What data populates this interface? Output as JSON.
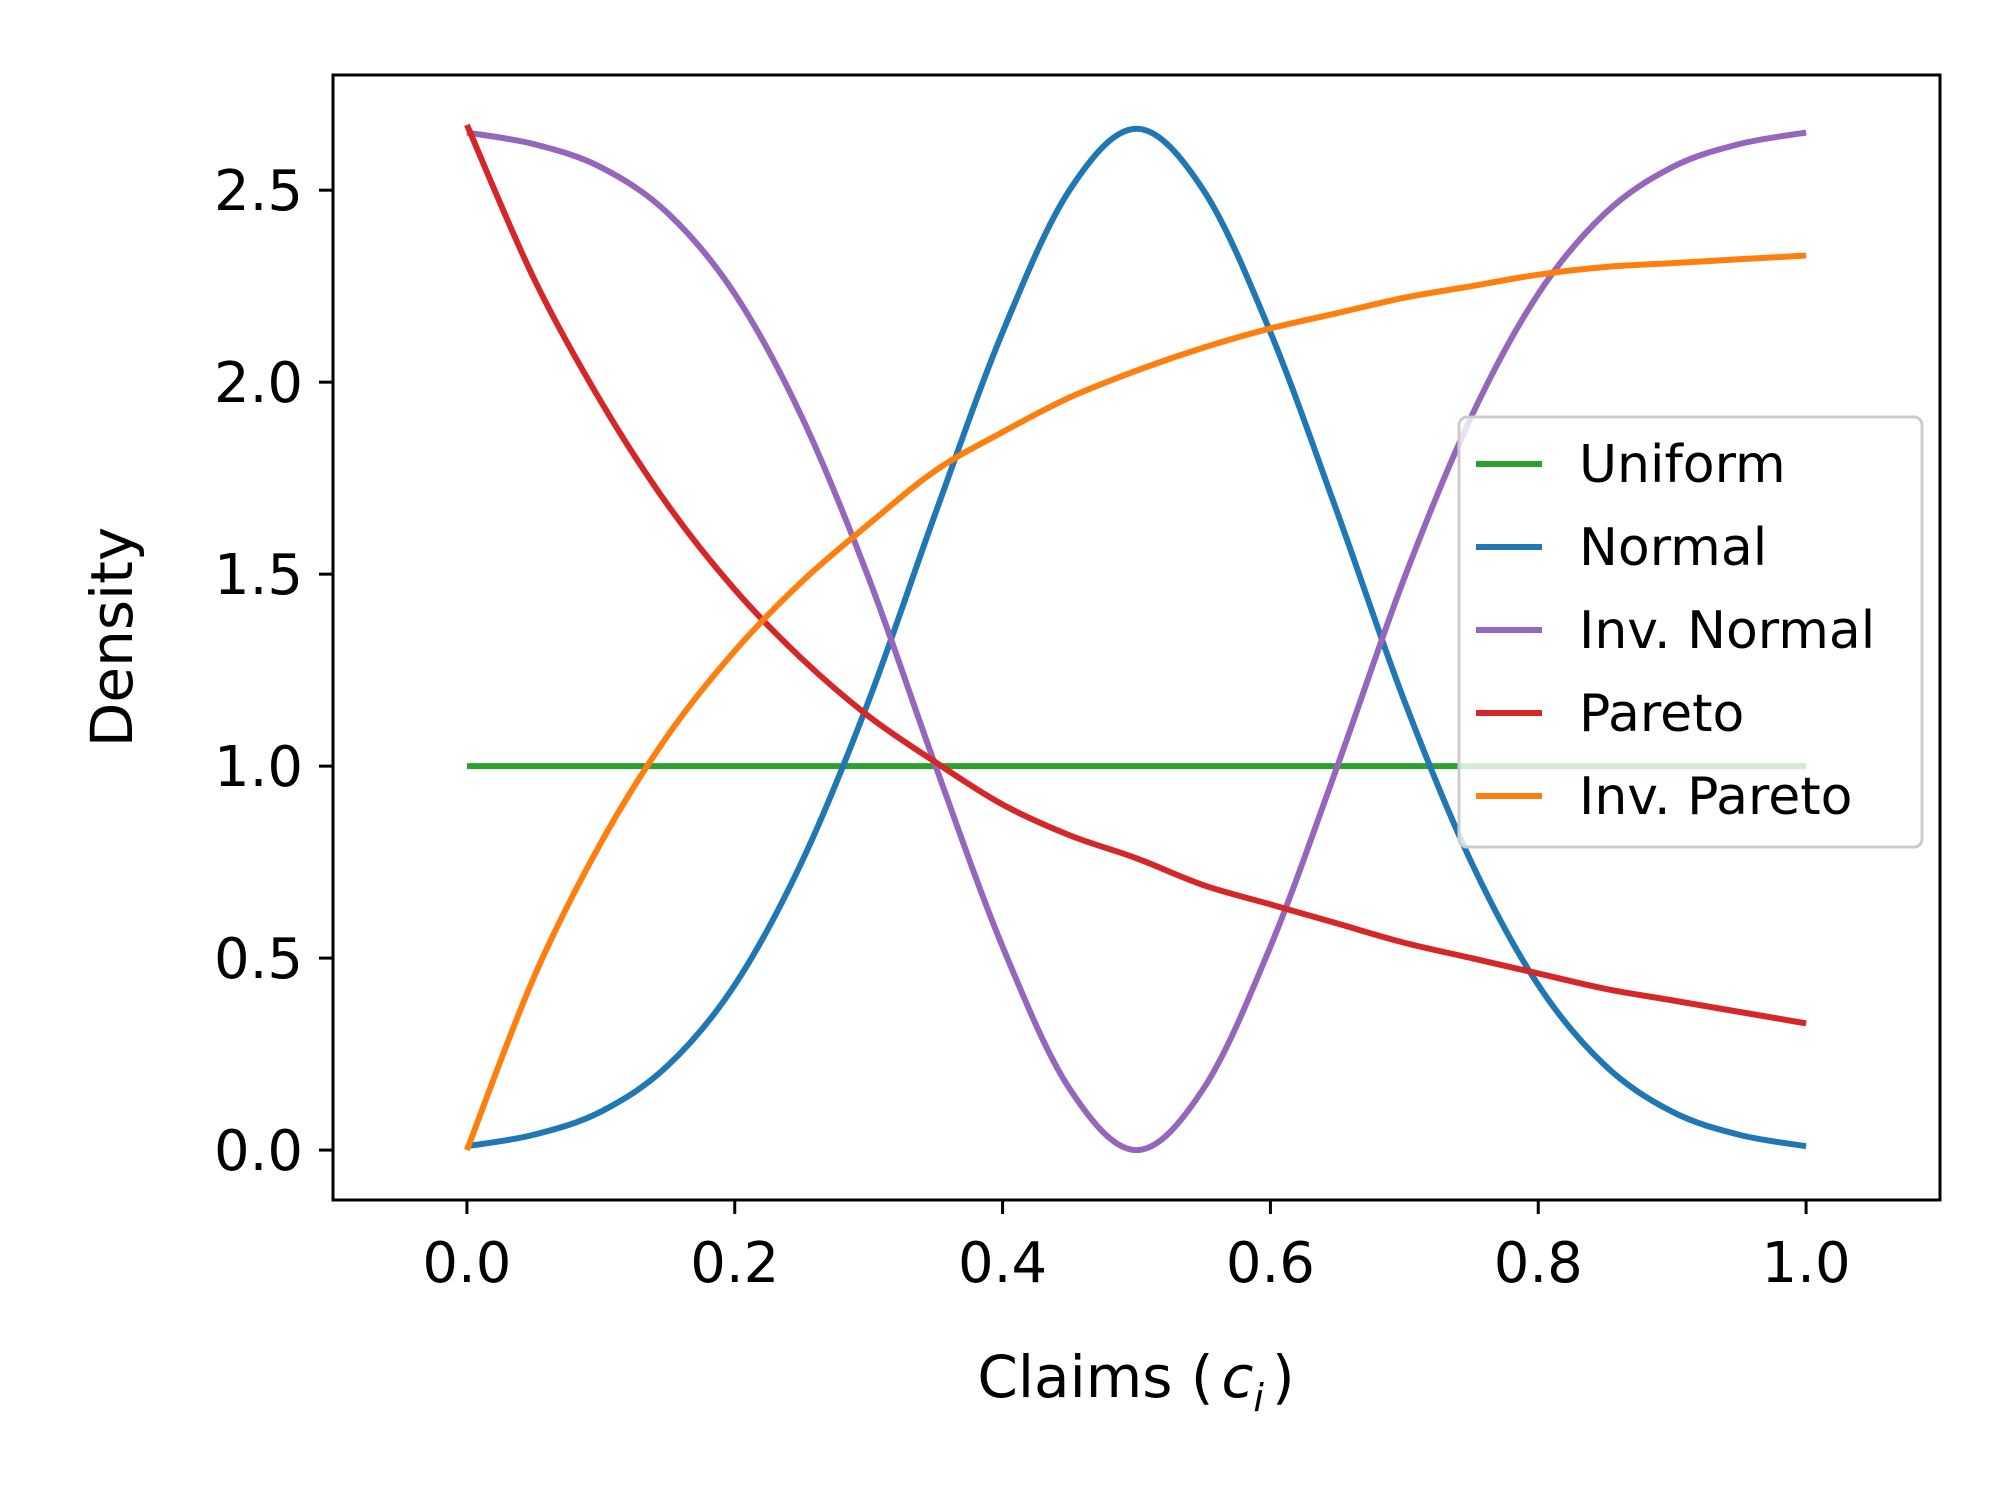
{
  "chart_data": {
    "type": "line",
    "title": "",
    "xlabel": "Claims (",
    "xlabel_symbol": "c",
    "xlabel_subscript": "i",
    "xlabel_close": ")",
    "ylabel": "Density",
    "xlim": [
      -0.1,
      1.1
    ],
    "ylim": [
      -0.13,
      2.8
    ],
    "xticks": [
      0.0,
      0.2,
      0.4,
      0.6,
      0.8,
      1.0
    ],
    "xtick_labels": [
      "0.0",
      "0.2",
      "0.4",
      "0.6",
      "0.8",
      "1.0"
    ],
    "yticks": [
      0.0,
      0.5,
      1.0,
      1.5,
      2.0,
      2.5
    ],
    "ytick_labels": [
      "0.0",
      "0.5",
      "1.0",
      "1.5",
      "2.0",
      "2.5"
    ],
    "grid": false,
    "legend_position": "right",
    "x": [
      0.0,
      0.05,
      0.1,
      0.15,
      0.2,
      0.25,
      0.3,
      0.35,
      0.4,
      0.45,
      0.5,
      0.55,
      0.6,
      0.65,
      0.7,
      0.75,
      0.8,
      0.85,
      0.9,
      0.95,
      1.0
    ],
    "series": [
      {
        "name": "Uniform",
        "color": "#2ca02c",
        "values": [
          1.0,
          1.0,
          1.0,
          1.0,
          1.0,
          1.0,
          1.0,
          1.0,
          1.0,
          1.0,
          1.0,
          1.0,
          1.0,
          1.0,
          1.0,
          1.0,
          1.0,
          1.0,
          1.0,
          1.0,
          1.0
        ]
      },
      {
        "name": "Normal",
        "color": "#1f77b4",
        "values": [
          0.01,
          0.04,
          0.1,
          0.22,
          0.43,
          0.75,
          1.17,
          1.66,
          2.13,
          2.5,
          2.66,
          2.5,
          2.13,
          1.66,
          1.17,
          0.75,
          0.43,
          0.22,
          0.1,
          0.04,
          0.01
        ]
      },
      {
        "name": "Inv. Normal",
        "color": "#9467bd",
        "values": [
          2.65,
          2.62,
          2.56,
          2.44,
          2.23,
          1.91,
          1.49,
          1.0,
          0.53,
          0.16,
          0.0,
          0.16,
          0.53,
          1.0,
          1.49,
          1.91,
          2.23,
          2.44,
          2.56,
          2.62,
          2.65
        ]
      },
      {
        "name": "Pareto",
        "color": "#d62728",
        "values": [
          2.67,
          2.27,
          1.95,
          1.68,
          1.46,
          1.28,
          1.13,
          1.01,
          0.9,
          0.82,
          0.76,
          0.69,
          0.64,
          0.59,
          0.54,
          0.5,
          0.46,
          0.42,
          0.39,
          0.36,
          0.33
        ]
      },
      {
        "name": "Inv. Pareto",
        "color": "#ff7f0e",
        "values": [
          0.0,
          0.45,
          0.8,
          1.08,
          1.3,
          1.48,
          1.63,
          1.77,
          1.87,
          1.96,
          2.03,
          2.09,
          2.14,
          2.18,
          2.22,
          2.25,
          2.28,
          2.3,
          2.31,
          2.32,
          2.33
        ]
      }
    ]
  }
}
